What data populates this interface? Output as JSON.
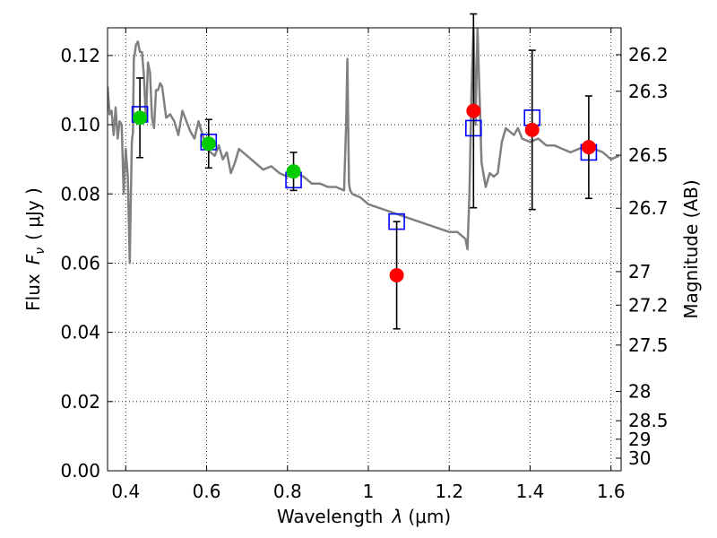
{
  "chart_data": {
    "type": "scatter",
    "xlabel_text": "Wavelength",
    "xlabel_symbol": "λ",
    "xlabel_unit": "(μm)",
    "ylabel_text": "Flux",
    "ylabel_symbol": "F",
    "ylabel_sub": "ν",
    "ylabel_unit": "( μJy )",
    "y2label": "Magnitude (AB)",
    "xlim": [
      0.355,
      1.625
    ],
    "ylim": [
      0.0,
      0.128
    ],
    "grid": true,
    "x_ticks": [
      {
        "v": 0.4,
        "label": "0.4"
      },
      {
        "v": 0.6,
        "label": "0.6"
      },
      {
        "v": 0.8,
        "label": "0.8"
      },
      {
        "v": 1.0,
        "label": "1"
      },
      {
        "v": 1.2,
        "label": "1.2"
      },
      {
        "v": 1.4,
        "label": "1.4"
      },
      {
        "v": 1.6,
        "label": "1.6"
      }
    ],
    "y_ticks": [
      {
        "v": 0.0,
        "label": "0.00"
      },
      {
        "v": 0.02,
        "label": "0.02"
      },
      {
        "v": 0.04,
        "label": "0.04"
      },
      {
        "v": 0.06,
        "label": "0.06"
      },
      {
        "v": 0.08,
        "label": "0.08"
      },
      {
        "v": 0.1,
        "label": "0.10"
      },
      {
        "v": 0.12,
        "label": "0.12"
      }
    ],
    "y2_ticks": [
      {
        "mag": 26.2,
        "label": "26.2"
      },
      {
        "mag": 26.3,
        "label": "26.3"
      },
      {
        "mag": 26.5,
        "label": "26.5"
      },
      {
        "mag": 26.7,
        "label": "26.7"
      },
      {
        "mag": 27.0,
        "label": "27"
      },
      {
        "mag": 27.2,
        "label": "27.2"
      },
      {
        "mag": 27.5,
        "label": "27.5"
      },
      {
        "mag": 28.0,
        "label": "28"
      },
      {
        "mag": 28.5,
        "label": "28.5"
      },
      {
        "mag": 29.0,
        "label": "29"
      },
      {
        "mag": 30.0,
        "label": "30"
      }
    ],
    "model_spectrum": {
      "color": "#808080",
      "x": [
        0.355,
        0.36,
        0.365,
        0.37,
        0.375,
        0.38,
        0.385,
        0.39,
        0.395,
        0.4,
        0.405,
        0.41,
        0.412,
        0.415,
        0.418,
        0.42,
        0.423,
        0.425,
        0.43,
        0.435,
        0.44,
        0.445,
        0.45,
        0.455,
        0.46,
        0.465,
        0.47,
        0.475,
        0.48,
        0.485,
        0.49,
        0.5,
        0.51,
        0.52,
        0.53,
        0.54,
        0.55,
        0.56,
        0.57,
        0.58,
        0.59,
        0.6,
        0.61,
        0.62,
        0.63,
        0.64,
        0.65,
        0.66,
        0.67,
        0.68,
        0.7,
        0.72,
        0.74,
        0.76,
        0.78,
        0.8,
        0.82,
        0.84,
        0.86,
        0.88,
        0.9,
        0.92,
        0.94,
        0.945,
        0.948,
        0.95,
        0.952,
        0.955,
        0.96,
        0.98,
        1.0,
        1.05,
        1.1,
        1.15,
        1.2,
        1.22,
        1.24,
        1.245,
        1.25,
        1.255,
        1.26,
        1.265,
        1.27,
        1.28,
        1.29,
        1.3,
        1.31,
        1.32,
        1.33,
        1.34,
        1.35,
        1.36,
        1.37,
        1.38,
        1.4,
        1.42,
        1.44,
        1.46,
        1.48,
        1.5,
        1.52,
        1.54,
        1.56,
        1.58,
        1.6,
        1.62
      ],
      "y": [
        0.111,
        0.103,
        0.104,
        0.097,
        0.105,
        0.096,
        0.101,
        0.1,
        0.08,
        0.093,
        0.085,
        0.06,
        0.075,
        0.095,
        0.098,
        0.119,
        0.121,
        0.123,
        0.124,
        0.121,
        0.121,
        0.114,
        0.101,
        0.118,
        0.115,
        0.102,
        0.099,
        0.11,
        0.11,
        0.112,
        0.111,
        0.102,
        0.103,
        0.101,
        0.097,
        0.104,
        0.101,
        0.098,
        0.096,
        0.101,
        0.097,
        0.093,
        0.092,
        0.091,
        0.094,
        0.09,
        0.092,
        0.086,
        0.089,
        0.093,
        0.091,
        0.089,
        0.087,
        0.088,
        0.086,
        0.085,
        0.086,
        0.085,
        0.083,
        0.083,
        0.082,
        0.082,
        0.081,
        0.1,
        0.119,
        0.1,
        0.083,
        0.081,
        0.08,
        0.079,
        0.077,
        0.075,
        0.073,
        0.071,
        0.069,
        0.069,
        0.067,
        0.064,
        0.08,
        0.11,
        0.128,
        0.1,
        0.128,
        0.089,
        0.082,
        0.086,
        0.085,
        0.086,
        0.095,
        0.099,
        0.098,
        0.097,
        0.099,
        0.096,
        0.095,
        0.096,
        0.094,
        0.094,
        0.093,
        0.092,
        0.093,
        0.094,
        0.093,
        0.092,
        0.09,
        0.091
      ]
    },
    "model_photometry": {
      "marker": "open square",
      "color": "#0000ff",
      "points": [
        {
          "x": 0.435,
          "y": 0.103
        },
        {
          "x": 0.605,
          "y": 0.095
        },
        {
          "x": 0.815,
          "y": 0.084
        },
        {
          "x": 1.07,
          "y": 0.072
        },
        {
          "x": 1.26,
          "y": 0.099
        },
        {
          "x": 1.405,
          "y": 0.102
        },
        {
          "x": 1.545,
          "y": 0.092
        }
      ]
    },
    "observed_optical": {
      "marker": "filled circle",
      "color": "#00cc00",
      "points": [
        {
          "x": 0.435,
          "y": 0.102,
          "err": 0.0115
        },
        {
          "x": 0.605,
          "y": 0.0945,
          "err": 0.007
        },
        {
          "x": 0.815,
          "y": 0.0865,
          "err": 0.0055
        }
      ]
    },
    "observed_nir": {
      "marker": "filled circle",
      "color": "#ff0000",
      "points": [
        {
          "x": 1.07,
          "y": 0.0565,
          "err": 0.0155
        },
        {
          "x": 1.26,
          "y": 0.104,
          "err": 0.028
        },
        {
          "x": 1.405,
          "y": 0.0985,
          "err": 0.023
        },
        {
          "x": 1.545,
          "y": 0.0935,
          "err": 0.0148
        }
      ]
    }
  }
}
